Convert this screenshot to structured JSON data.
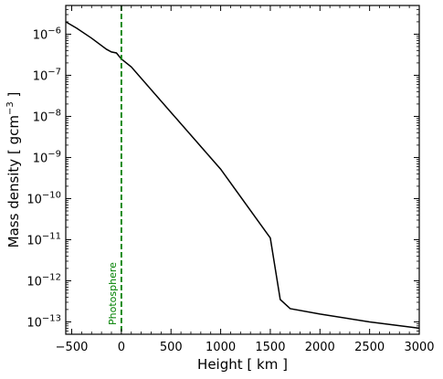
{
  "chart_data": {
    "type": "line",
    "xlabel": "Height [ km ]",
    "ylabel": "Mass density [ gcm",
    "ylabel_sup": "−3",
    "ylabel_end": " ]",
    "xlim": [
      -560,
      3000
    ],
    "ylim": [
      5e-14,
      5e-06
    ],
    "yscale": "log",
    "x_ticks": [
      -500,
      0,
      500,
      1000,
      1500,
      2000,
      2500,
      3000
    ],
    "x_tick_labels": [
      "−500",
      "0",
      "500",
      "1000",
      "1500",
      "2000",
      "2500",
      "3000"
    ],
    "y_ticks": [
      1e-13,
      1e-12,
      1e-11,
      1e-10,
      1e-09,
      1e-08,
      1e-07,
      1e-06
    ],
    "y_tick_labels": [
      {
        "base": "10",
        "exp": "−13"
      },
      {
        "base": "10",
        "exp": "−12"
      },
      {
        "base": "10",
        "exp": "−11"
      },
      {
        "base": "10",
        "exp": "−10"
      },
      {
        "base": "10",
        "exp": "−9"
      },
      {
        "base": "10",
        "exp": "−8"
      },
      {
        "base": "10",
        "exp": "−7"
      },
      {
        "base": "10",
        "exp": "−6"
      }
    ],
    "grid": false,
    "series": [
      {
        "color": "#000000",
        "x": [
          -560,
          -450,
          -300,
          -150,
          -100,
          -50,
          0,
          100,
          500,
          1000,
          1500,
          1600,
          1700,
          2000,
          2500,
          3000
        ],
        "y": [
          2e-06,
          1.4e-06,
          8e-07,
          4.3e-07,
          3.7e-07,
          3.5e-07,
          2.5e-07,
          1.6e-07,
          1.25e-08,
          5.2e-10,
          1.1e-11,
          3.5e-13,
          2.1e-13,
          1.55e-13,
          1e-13,
          7e-14
        ]
      }
    ],
    "annotations": [
      {
        "type": "vline",
        "x": 0,
        "color": "#008000",
        "style": "dashed",
        "label": "Photosphere"
      }
    ]
  }
}
